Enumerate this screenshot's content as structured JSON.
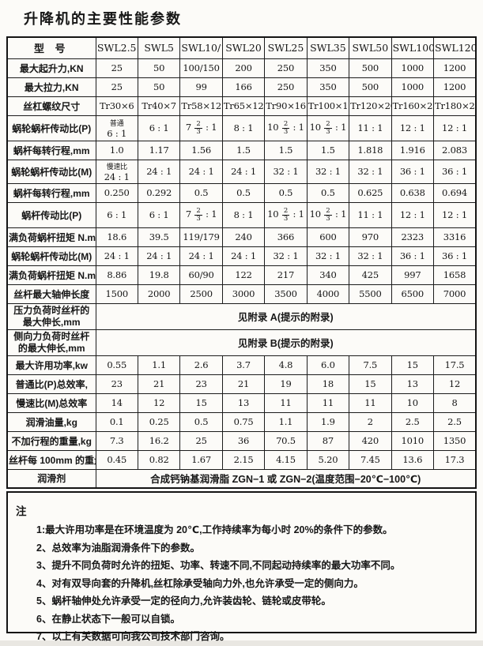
{
  "page": {
    "title": "升降机的主要性能参数"
  },
  "table": {
    "header": [
      "型 号",
      "SWL2.5",
      "SWL5",
      "SWL10/15",
      "SWL20",
      "SWL25",
      "SWL35",
      "SWL50",
      "SWL100",
      "SWL120"
    ],
    "rows": [
      {
        "label": "最大起升力,KN",
        "values": [
          "25",
          "50",
          "100/150",
          "200",
          "250",
          "350",
          "500",
          "1000",
          "1200"
        ]
      },
      {
        "label": "最大拉力,KN",
        "values": [
          "25",
          "50",
          "99",
          "166",
          "250",
          "350",
          "500",
          "1000",
          "1200"
        ]
      },
      {
        "label": "丝杠螺纹尺寸",
        "values": [
          "Tr30×6",
          "Tr40×7",
          "Tr58×12",
          "Tr65×12",
          "Tr90×16",
          "Tr100×18",
          "Tr120×20",
          "Tr160×23",
          "Tr180×25"
        ]
      },
      {
        "label": "蜗轮蜗杆传动比(P)",
        "values": [
          "普通\n6 : 1",
          "6 : 1",
          "7 [2/3] : 1",
          "8 : 1",
          "10 [2/3] : 1",
          "10 [2/3] : 1",
          "11 : 1",
          "12 : 1",
          "12 : 1"
        ]
      },
      {
        "label": "蜗杆每转行程,mm",
        "values": [
          "1.0",
          "1.17",
          "1.56",
          "1.5",
          "1.5",
          "1.5",
          "1.818",
          "1.916",
          "2.083"
        ]
      },
      {
        "label": "蜗轮蜗杆传动比(M)",
        "values": [
          "慢速比\n24 : 1",
          "24 : 1",
          "24 : 1",
          "24 : 1",
          "32 : 1",
          "32 : 1",
          "32 : 1",
          "36 : 1",
          "36 : 1"
        ]
      },
      {
        "label": "蜗杆每转行程,mm",
        "values": [
          "0.250",
          "0.292",
          "0.5",
          "0.5",
          "0.5",
          "0.5",
          "0.625",
          "0.638",
          "0.694"
        ]
      },
      {
        "label": "蜗杆传动比(P)",
        "values": [
          "6 : 1",
          "6 : 1",
          "7 [2/3] : 1",
          "8 : 1",
          "10 [2/3] : 1",
          "10 [2/3] : 1",
          "11 : 1",
          "12 : 1",
          "12 : 1"
        ]
      },
      {
        "label": "满负荷蜗杆扭矩 N.m",
        "values": [
          "18.6",
          "39.5",
          "119/179",
          "240",
          "366",
          "600",
          "970",
          "2323",
          "3316"
        ]
      },
      {
        "label": "蜗轮蜗杆传动比(M)",
        "values": [
          "24 : 1",
          "24 : 1",
          "24 : 1",
          "24 : 1",
          "32 : 1",
          "32 : 1",
          "32 : 1",
          "36 : 1",
          "36 : 1"
        ]
      },
      {
        "label": "满负荷蜗杆扭矩 N.m",
        "values": [
          "8.86",
          "19.8",
          "60/90",
          "122",
          "217",
          "340",
          "425",
          "997",
          "1658"
        ]
      },
      {
        "label": "丝杆最大轴伸长度",
        "values": [
          "1500",
          "2000",
          "2500",
          "3000",
          "3500",
          "4000",
          "5500",
          "6500",
          "7000"
        ]
      },
      {
        "label": "压力负荷时丝杆的\n最大伸长,mm",
        "span": "见附录 A(提示的附录)"
      },
      {
        "label": "侧向力负荷时丝杆\n的最大伸长,mm",
        "span": "见附录 B(提示的附录)"
      },
      {
        "label": "最大许用功率,kw",
        "values": [
          "0.55",
          "1.1",
          "2.6",
          "3.7",
          "4.8",
          "6.0",
          "7.5",
          "15",
          "17.5"
        ]
      },
      {
        "label": "普通比(P)总效率,",
        "values": [
          "23",
          "21",
          "23",
          "21",
          "19",
          "18",
          "15",
          "13",
          "12"
        ]
      },
      {
        "label": "慢速比(M)总效率",
        "values": [
          "14",
          "12",
          "15",
          "13",
          "11",
          "11",
          "11",
          "10",
          "8"
        ]
      },
      {
        "label": "润滑油量,kg",
        "values": [
          "0.1",
          "0.25",
          "0.5",
          "0.75",
          "1.1",
          "1.9",
          "2",
          "2.5",
          "2.5"
        ]
      },
      {
        "label": "不加行程的重量,kg",
        "values": [
          "7.3",
          "16.2",
          "25",
          "36",
          "70.5",
          "87",
          "420",
          "1010",
          "1350"
        ]
      },
      {
        "label": "丝杆每 100mm 的重量",
        "values": [
          "0.45",
          "0.82",
          "1.67",
          "2.15",
          "4.15",
          "5.20",
          "7.45",
          "13.6",
          "17.3"
        ]
      },
      {
        "label": "润滑剂",
        "span": "合成钙钠基润滑脂 ZGN−1 或 ZGN−2(温度范围−20℃−100℃)"
      }
    ]
  },
  "notes": {
    "heading": "注",
    "items": [
      "1:最大许用功率是在环境温度为 20℃,工作持续率为每小时 20%的条件下的参数。",
      "2、总效率为油脂润滑条件下的参数。",
      "3、提升不同负荷时允许的扭矩、功率、转速不同,不同起动持续率的最大功率不同。",
      "4、对有双导向套的升降机,丝杠除承受轴向力外,也允许承受一定的侧向力。",
      "5、蜗杆轴伸处允许承受一定的径向力,允许装齿轮、链轮或皮带轮。",
      "6、在静止状态下一般可以自锁。",
      "7、以上有关数据可向我公司技术部门咨询。"
    ]
  }
}
